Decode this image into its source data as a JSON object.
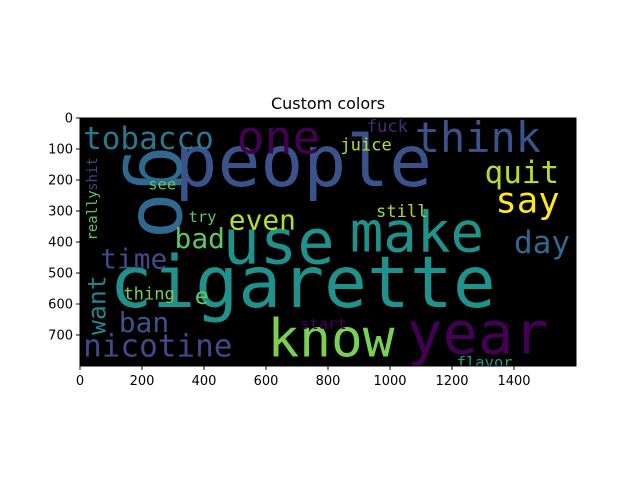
{
  "chart_data": {
    "type": "wordcloud",
    "title": "Custom colors",
    "xlim": [
      0,
      1600
    ],
    "ylim": [
      800,
      0
    ],
    "x_ticks": [
      0,
      200,
      400,
      600,
      800,
      1000,
      1200,
      1400
    ],
    "y_ticks": [
      0,
      100,
      200,
      300,
      400,
      500,
      600,
      700
    ],
    "background": "#000000",
    "colormap": "viridis",
    "words": [
      {
        "text": "people",
        "x": 305,
        "y": 220,
        "size": 230,
        "color": "#3b528b",
        "rotate": 0
      },
      {
        "text": "cigarette",
        "x": 95,
        "y": 610,
        "size": 230,
        "color": "#21918c",
        "rotate": 0
      },
      {
        "text": "go",
        "x": 190,
        "y": 90,
        "size": 250,
        "color": "#31688e",
        "rotate": 90
      },
      {
        "text": "one",
        "x": 505,
        "y": 115,
        "size": 150,
        "color": "#440154",
        "rotate": 0
      },
      {
        "text": "think",
        "x": 1080,
        "y": 110,
        "size": 135,
        "color": "#3b528b",
        "rotate": 0
      },
      {
        "text": "use",
        "x": 460,
        "y": 470,
        "size": 200,
        "color": "#21918c",
        "rotate": 0
      },
      {
        "text": "make",
        "x": 870,
        "y": 430,
        "size": 180,
        "color": "#21918c",
        "rotate": 0
      },
      {
        "text": "year",
        "x": 1055,
        "y": 760,
        "size": 190,
        "color": "#440154",
        "rotate": 0
      },
      {
        "text": "know",
        "x": 605,
        "y": 770,
        "size": 170,
        "color": "#7ad151",
        "rotate": 0
      },
      {
        "text": "tobacco",
        "x": 10,
        "y": 100,
        "size": 100,
        "color": "#2a788e",
        "rotate": 0
      },
      {
        "text": "nicotine",
        "x": 10,
        "y": 770,
        "size": 100,
        "color": "#3e4a89",
        "rotate": 0
      },
      {
        "text": "say",
        "x": 1340,
        "y": 305,
        "size": 115,
        "color": "#fde725",
        "rotate": 0
      },
      {
        "text": "quit",
        "x": 1305,
        "y": 210,
        "size": 100,
        "color": "#b5de2b",
        "rotate": 0
      },
      {
        "text": "day",
        "x": 1400,
        "y": 435,
        "size": 100,
        "color": "#31688e",
        "rotate": 0
      },
      {
        "text": "even",
        "x": 480,
        "y": 360,
        "size": 90,
        "color": "#b5de2b",
        "rotate": 0
      },
      {
        "text": "time",
        "x": 65,
        "y": 485,
        "size": 90,
        "color": "#3e4a89",
        "rotate": 0
      },
      {
        "text": "bad",
        "x": 305,
        "y": 420,
        "size": 90,
        "color": "#5ec962",
        "rotate": 0
      },
      {
        "text": "ban",
        "x": 125,
        "y": 690,
        "size": 90,
        "color": "#3b528b",
        "rotate": 0
      },
      {
        "text": "want",
        "x": 82,
        "y": 700,
        "size": 80,
        "color": "#26828e",
        "rotate": -90
      },
      {
        "text": "e",
        "x": 370,
        "y": 600,
        "size": 75,
        "color": "#5ec962",
        "rotate": 0
      },
      {
        "text": "thing",
        "x": 140,
        "y": 585,
        "size": 55,
        "color": "#7ad151",
        "rotate": 0
      },
      {
        "text": "juice",
        "x": 840,
        "y": 105,
        "size": 55,
        "color": "#b5de2b",
        "rotate": 0
      },
      {
        "text": "fuck",
        "x": 925,
        "y": 45,
        "size": 55,
        "color": "#482878",
        "rotate": 0
      },
      {
        "text": "still",
        "x": 955,
        "y": 320,
        "size": 55,
        "color": "#a0da39",
        "rotate": 0
      },
      {
        "text": "see",
        "x": 220,
        "y": 230,
        "size": 50,
        "color": "#5ec962",
        "rotate": 0
      },
      {
        "text": "try",
        "x": 350,
        "y": 335,
        "size": 50,
        "color": "#5ec962",
        "rotate": 0
      },
      {
        "text": "start",
        "x": 710,
        "y": 680,
        "size": 50,
        "color": "#440154",
        "rotate": 0
      },
      {
        "text": "flavor",
        "x": 1215,
        "y": 805,
        "size": 50,
        "color": "#1f9e89",
        "rotate": 0
      },
      {
        "text": "shit",
        "x": 55,
        "y": 235,
        "size": 45,
        "color": "#3e4a89",
        "rotate": -90
      },
      {
        "text": "really",
        "x": 55,
        "y": 395,
        "size": 45,
        "color": "#5ec962",
        "rotate": -90
      }
    ]
  }
}
